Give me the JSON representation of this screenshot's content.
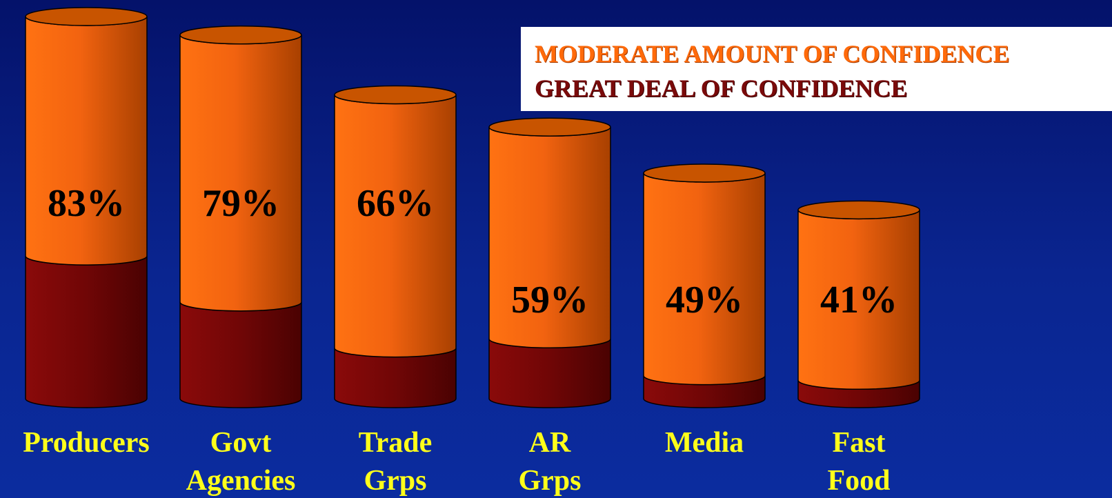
{
  "colors": {
    "background_top": "#04126a",
    "background_bottom": "#0b2c9f",
    "moderate": "#f06010",
    "great": "#7a0808",
    "category_label": "#ffff1a",
    "value_label": "#000000"
  },
  "legend": {
    "moderate_label": "MODERATE AMOUNT OF CONFIDENCE",
    "great_label": "GREAT DEAL OF CONFIDENCE"
  },
  "chart_data": {
    "type": "bar",
    "style": "3d-cylinder-stacked",
    "categories": [
      [
        "Producers"
      ],
      [
        "Govt",
        "Agencies"
      ],
      [
        "Trade",
        "Grps"
      ],
      [
        "AR",
        "Grps"
      ],
      [
        "Media"
      ],
      [
        "Fast",
        "Food"
      ]
    ],
    "totals": [
      83,
      79,
      66,
      59,
      49,
      41
    ],
    "total_labels": [
      "83%",
      "79%",
      "66%",
      "59%",
      "49%",
      "41%"
    ],
    "series": [
      {
        "name": "GREAT DEAL OF CONFIDENCE",
        "values": [
          31,
          21,
          11,
          13,
          5,
          4
        ]
      },
      {
        "name": "MODERATE AMOUNT OF CONFIDENCE",
        "values": [
          52,
          58,
          55,
          46,
          44,
          37
        ]
      }
    ],
    "ylim": [
      0,
      83
    ],
    "grid": false,
    "legend_position": "top-right"
  }
}
